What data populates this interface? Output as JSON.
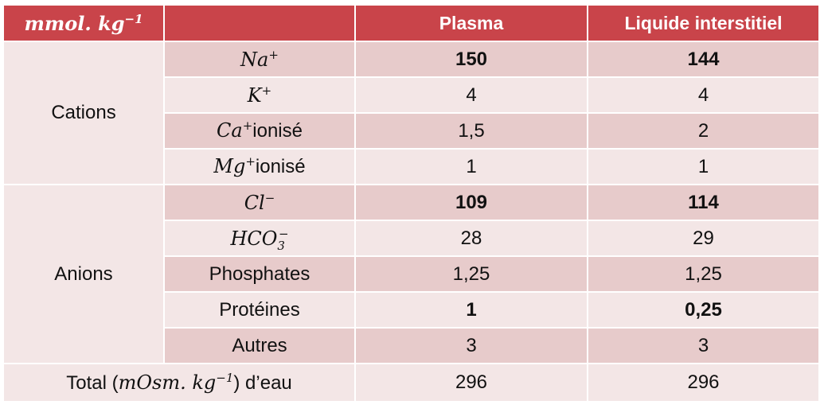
{
  "header": {
    "unit_base": "mmol. kg",
    "unit_exp": "−1",
    "col2": "Plasma",
    "col3": "Liquide interstitiel"
  },
  "groups": {
    "cations": "Cations",
    "anions": "Anions"
  },
  "rows": [
    {
      "base": "Na",
      "sup": "+",
      "suffix": "",
      "plasma": "150",
      "interstitiel": "144"
    },
    {
      "base": "K",
      "sup": "+",
      "suffix": "",
      "plasma": "4",
      "interstitiel": "4"
    },
    {
      "base": "Ca",
      "sup": "+",
      "suffix": "ionisé",
      "plasma": "1,5",
      "interstitiel": "2"
    },
    {
      "base": "Mg",
      "sup": "+",
      "suffix": "ionisé",
      "plasma": "1",
      "interstitiel": "1"
    },
    {
      "base": "Cl",
      "sup": "−",
      "suffix": "",
      "plasma": "109",
      "interstitiel": "114"
    },
    {
      "base": "HCO",
      "sub": "3",
      "sup": "−",
      "plasma": "28",
      "interstitiel": "29"
    },
    {
      "label": "Phosphates",
      "plasma": "1,25",
      "interstitiel": "1,25"
    },
    {
      "label": "Protéines",
      "plasma": "1",
      "interstitiel": "0,25"
    },
    {
      "label": "Autres",
      "plasma": "3",
      "interstitiel": "3"
    }
  ],
  "total": {
    "label_pre": "Total (",
    "label_math": "mOsm. kg",
    "label_exp": "−1",
    "label_post": ") d’eau",
    "plasma": "296",
    "interstitiel": "296"
  }
}
